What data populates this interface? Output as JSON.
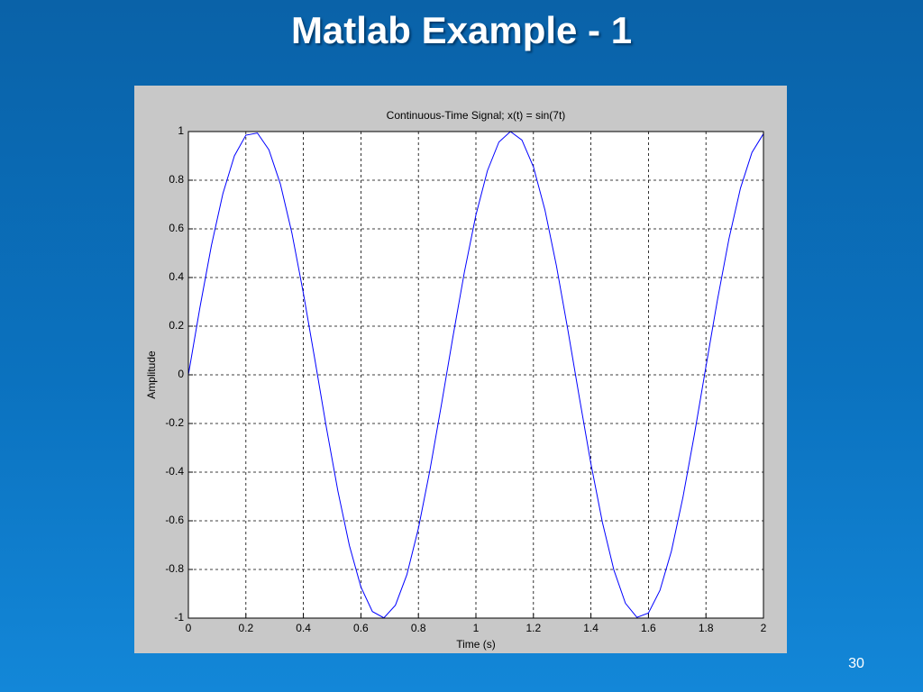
{
  "slide_title": "Matlab Example - 1",
  "page_number": "30",
  "chart_data": {
    "type": "line",
    "title": "Continuous-Time Signal; x(t) = sin(7t)",
    "x_label": "Time (s)",
    "y_label": "Amplitude",
    "x": [
      0,
      0.04,
      0.08,
      0.12,
      0.16,
      0.2,
      0.24,
      0.28,
      0.32,
      0.36,
      0.4,
      0.44,
      0.48,
      0.52,
      0.56,
      0.6,
      0.64,
      0.68,
      0.72,
      0.76,
      0.8,
      0.84,
      0.88,
      0.92,
      0.96,
      1,
      1.04,
      1.08,
      1.12,
      1.16,
      1.2,
      1.24,
      1.28,
      1.32,
      1.36,
      1.4,
      1.44,
      1.48,
      1.52,
      1.56,
      1.6,
      1.64,
      1.68,
      1.72,
      1.76,
      1.8,
      1.84,
      1.88,
      1.92,
      1.96,
      2
    ],
    "series": [
      {
        "color": "#0000ff",
        "values": [
          0,
          0.276,
          0.531,
          0.745,
          0.9,
          0.985,
          0.994,
          0.925,
          0.784,
          0.583,
          0.335,
          0.062,
          -0.217,
          -0.478,
          -0.702,
          -0.872,
          -0.973,
          -0.999,
          -0.947,
          -0.821,
          -0.631,
          -0.392,
          -0.123,
          0.156,
          0.423,
          0.657,
          0.839,
          0.957,
          1,
          0.965,
          0.855,
          0.678,
          0.448,
          0.183,
          -0.095,
          -0.366,
          -0.607,
          -0.803,
          -0.939,
          -0.997,
          -0.979,
          -0.886,
          -0.724,
          -0.503,
          -0.244,
          0.034,
          0.308,
          0.559,
          0.767,
          0.914,
          0.991
        ]
      }
    ],
    "xlim": [
      0,
      2
    ],
    "ylim": [
      -1,
      1
    ],
    "xticks": [
      0,
      0.2,
      0.4,
      0.6,
      0.8,
      1,
      1.2,
      1.4,
      1.6,
      1.8,
      2
    ],
    "yticks": [
      -1,
      -0.8,
      -0.6,
      -0.4,
      -0.2,
      0,
      0.2,
      0.4,
      0.6,
      0.8,
      1
    ],
    "grid": true
  }
}
